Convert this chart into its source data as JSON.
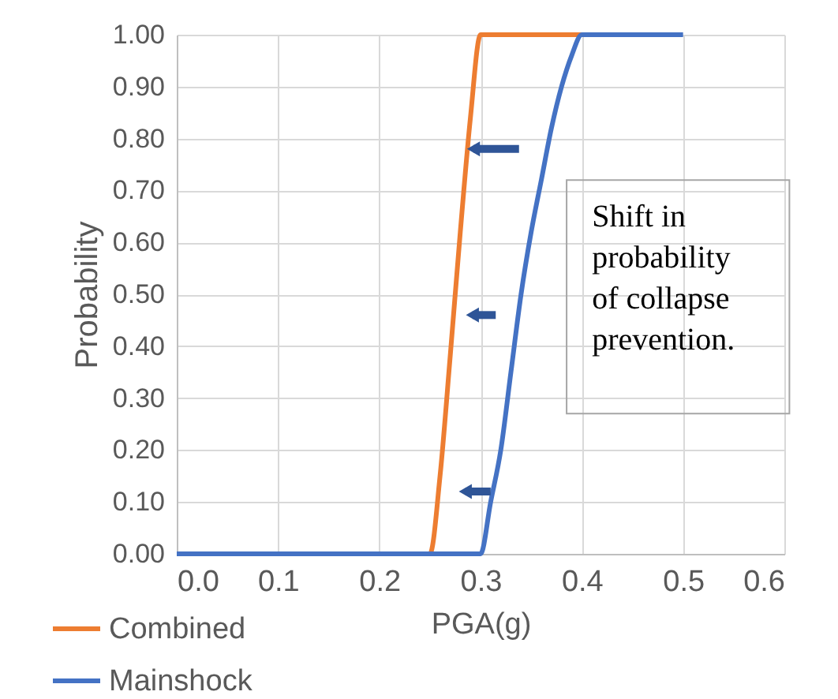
{
  "chart_data": {
    "type": "line",
    "xlabel": "PGA(g)",
    "ylabel": "Probability",
    "xlim": [
      0,
      0.6
    ],
    "xticks": [
      {
        "value": 0,
        "label": "0.0"
      },
      {
        "value": 0.1,
        "label": "0.1"
      },
      {
        "value": 0.2,
        "label": "0.2"
      },
      {
        "value": 0.3,
        "label": "0.3"
      },
      {
        "value": 0.4,
        "label": "0.4"
      },
      {
        "value": 0.5,
        "label": "0.5"
      },
      {
        "value": 0.6,
        "label": "0.6"
      }
    ],
    "ylim": [
      0,
      1
    ],
    "yticks": [
      {
        "value": 0,
        "label": "0.00"
      },
      {
        "value": 0.1,
        "label": "0.10"
      },
      {
        "value": 0.2,
        "label": "0.20"
      },
      {
        "value": 0.3,
        "label": "0.30"
      },
      {
        "value": 0.4,
        "label": "0.40"
      },
      {
        "value": 0.5,
        "label": "0.50"
      },
      {
        "value": 0.6,
        "label": "0.60"
      },
      {
        "value": 0.7,
        "label": "0.70"
      },
      {
        "value": 0.8,
        "label": "0.80"
      },
      {
        "value": 0.9,
        "label": "0.90"
      },
      {
        "value": 1,
        "label": "1.00"
      }
    ],
    "grid": true,
    "legend": "bottom left",
    "marker": "none",
    "line_style": "solid",
    "annotations": [
      "Shift in probability of collapse prevention."
    ],
    "series": [
      {
        "name": "Combined",
        "color": "#ed7d31",
        "x": [
          0.2,
          0.25,
          0.26,
          0.27,
          0.28,
          0.29,
          0.3,
          0.35,
          0.4
        ],
        "values": [
          0,
          0,
          0.15,
          0.38,
          0.62,
          0.84,
          1,
          1,
          1
        ]
      },
      {
        "name": "Mainshock",
        "color": "#4472c4",
        "x": [
          0,
          0.05,
          0.1,
          0.15,
          0.2,
          0.25,
          0.3,
          0.31,
          0.32,
          0.33,
          0.34,
          0.35,
          0.36,
          0.37,
          0.38,
          0.39,
          0.4,
          0.45,
          0.5
        ],
        "values": [
          0,
          0,
          0,
          0,
          0,
          0,
          0,
          0.1,
          0.2,
          0.35,
          0.5,
          0.62,
          0.72,
          0.82,
          0.9,
          0.96,
          1,
          1,
          1
        ]
      }
    ]
  }
}
